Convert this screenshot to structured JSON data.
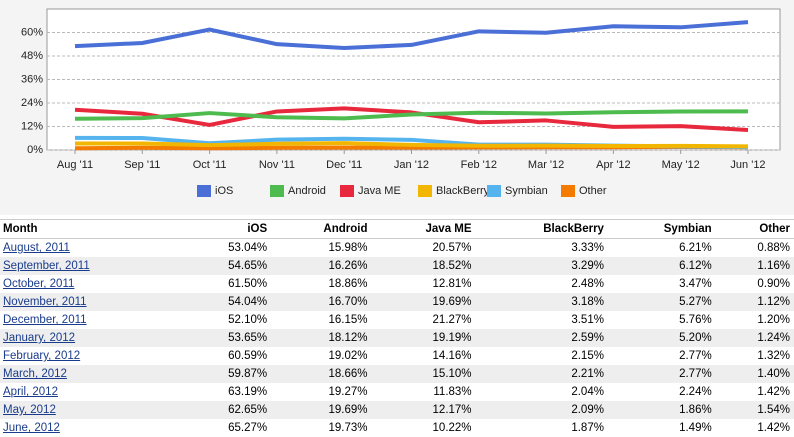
{
  "chart_data": {
    "type": "line",
    "categories": [
      "Aug '11",
      "Sep '11",
      "Oct '11",
      "Nov '11",
      "Dec '11",
      "Jan '12",
      "Feb '12",
      "Mar '12",
      "Apr '12",
      "May '12",
      "Jun '12"
    ],
    "ylim": [
      0,
      72
    ],
    "yticks": [
      {
        "value": 0,
        "label": "0%"
      },
      {
        "value": 12,
        "label": "12%"
      },
      {
        "value": 24,
        "label": "24%"
      },
      {
        "value": 36,
        "label": "36%"
      },
      {
        "value": 48,
        "label": "48%"
      },
      {
        "value": 60,
        "label": "60%"
      }
    ],
    "grid": true,
    "series": [
      {
        "name": "iOS",
        "color": "#4a6fd6",
        "values": [
          53.04,
          54.65,
          61.5,
          54.04,
          52.1,
          53.65,
          60.59,
          59.87,
          63.19,
          62.65,
          65.27
        ],
        "value_labels": [
          "53.04%",
          "54.65%",
          "61.50%",
          "54.04%",
          "52.10%",
          "53.65%",
          "60.59%",
          "59.87%",
          "63.19%",
          "62.65%",
          "65.27%"
        ]
      },
      {
        "name": "Android",
        "color": "#4dbb4d",
        "values": [
          15.98,
          16.26,
          18.86,
          16.7,
          16.15,
          18.12,
          19.02,
          18.66,
          19.27,
          19.69,
          19.73
        ],
        "value_labels": [
          "15.98%",
          "16.26%",
          "18.86%",
          "16.70%",
          "16.15%",
          "18.12%",
          "19.02%",
          "18.66%",
          "19.27%",
          "19.69%",
          "19.73%"
        ]
      },
      {
        "name": "Java ME",
        "color": "#e8283c",
        "values": [
          20.57,
          18.52,
          12.81,
          19.69,
          21.27,
          19.19,
          14.16,
          15.1,
          11.83,
          12.17,
          10.22
        ],
        "value_labels": [
          "20.57%",
          "18.52%",
          "12.81%",
          "19.69%",
          "21.27%",
          "19.19%",
          "14.16%",
          "15.10%",
          "11.83%",
          "12.17%",
          "10.22%"
        ]
      },
      {
        "name": "BlackBerry",
        "color": "#f2b600",
        "values": [
          3.33,
          3.29,
          2.48,
          3.18,
          3.51,
          2.59,
          2.15,
          2.21,
          2.04,
          2.09,
          1.87
        ],
        "value_labels": [
          "3.33%",
          "3.29%",
          "2.48%",
          "3.18%",
          "3.51%",
          "2.59%",
          "2.15%",
          "2.21%",
          "2.04%",
          "2.09%",
          "1.87%"
        ]
      },
      {
        "name": "Symbian",
        "color": "#55b4ee",
        "values": [
          6.21,
          6.12,
          3.47,
          5.27,
          5.76,
          5.2,
          2.77,
          2.77,
          2.24,
          1.86,
          1.49
        ],
        "value_labels": [
          "6.21%",
          "6.12%",
          "3.47%",
          "5.27%",
          "5.76%",
          "5.20%",
          "2.77%",
          "2.77%",
          "2.24%",
          "1.86%",
          "1.49%"
        ]
      },
      {
        "name": "Other",
        "color": "#f47a00",
        "values": [
          0.88,
          1.16,
          0.9,
          1.12,
          1.2,
          1.24,
          1.32,
          1.4,
          1.42,
          1.54,
          1.42
        ],
        "value_labels": [
          "0.88%",
          "1.16%",
          "0.90%",
          "1.12%",
          "1.20%",
          "1.24%",
          "1.32%",
          "1.40%",
          "1.42%",
          "1.54%",
          "1.42%"
        ]
      }
    ]
  },
  "table": {
    "header": "Month",
    "months": [
      "August, 2011",
      "September, 2011",
      "October, 2011",
      "November, 2011",
      "December, 2011",
      "January, 2012",
      "February, 2012",
      "March, 2012",
      "April, 2012",
      "May, 2012",
      "June, 2012"
    ]
  }
}
